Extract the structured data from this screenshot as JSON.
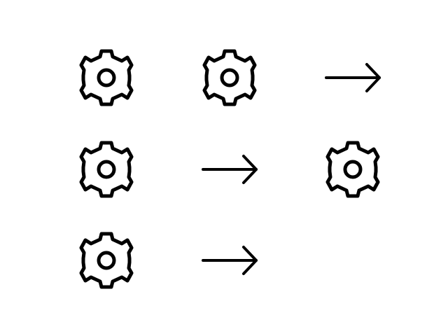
{
  "colors": {
    "background": "#ffffff",
    "stroke": "#000000"
  },
  "grid": {
    "rows": [
      [
        "gear-icon",
        "gear-icon",
        "arrow-right-icon"
      ],
      [
        "gear-icon",
        "arrow-right-icon",
        "gear-icon"
      ],
      [
        "gear-icon",
        "arrow-right-icon",
        ""
      ]
    ]
  }
}
